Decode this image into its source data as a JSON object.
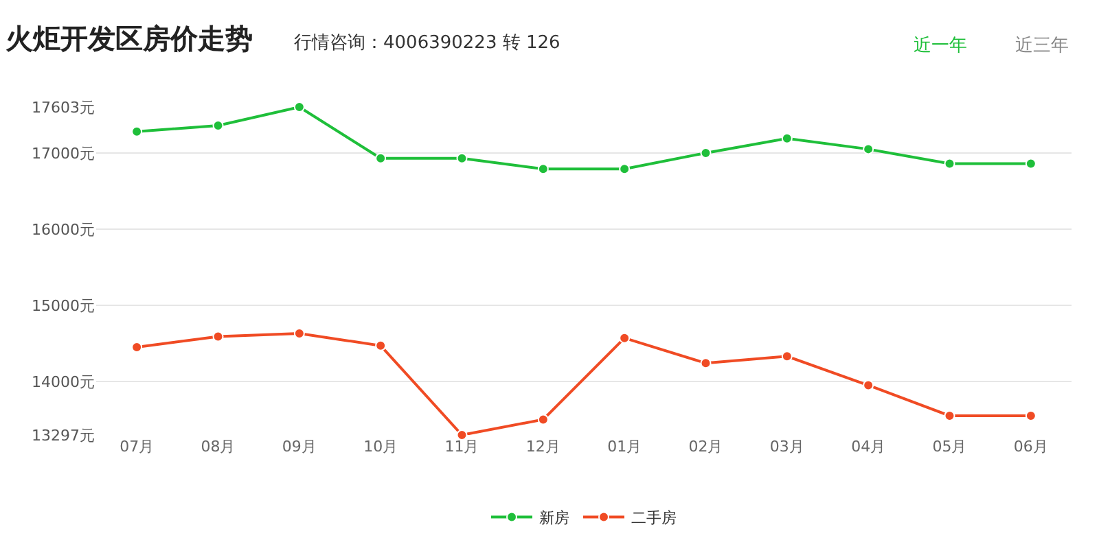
{
  "chart_data": {
    "type": "line",
    "title": "火炬开发区房价走势",
    "subtitle": "行情咨询：4006390223 转 126",
    "annotations": [
      "近一年",
      "近三年"
    ],
    "categories": [
      "07月",
      "08月",
      "09月",
      "10月",
      "11月",
      "12月",
      "01月",
      "02月",
      "03月",
      "04月",
      "05月",
      "06月"
    ],
    "series": [
      {
        "name": "新房",
        "color": "#1fbf3a",
        "values": [
          17280,
          17360,
          17603,
          16930,
          16930,
          16790,
          16790,
          17000,
          17190,
          17050,
          16860,
          16860
        ]
      },
      {
        "name": "二手房",
        "color": "#f04b24",
        "values": [
          14450,
          14590,
          14630,
          14470,
          13297,
          13500,
          14570,
          14240,
          14330,
          13950,
          13550,
          13550
        ]
      }
    ],
    "ylim": [
      13297,
      17603
    ],
    "yticks": [
      {
        "value": 13297,
        "label": "13297元"
      },
      {
        "value": 14000,
        "label": "14000元"
      },
      {
        "value": 15000,
        "label": "15000元"
      },
      {
        "value": 16000,
        "label": "16000元"
      },
      {
        "value": 17000,
        "label": "17000元"
      },
      {
        "value": 17603,
        "label": "17603元"
      }
    ],
    "grid": "y",
    "legend": "bottom",
    "marker": "circle",
    "line_style": "solid"
  }
}
